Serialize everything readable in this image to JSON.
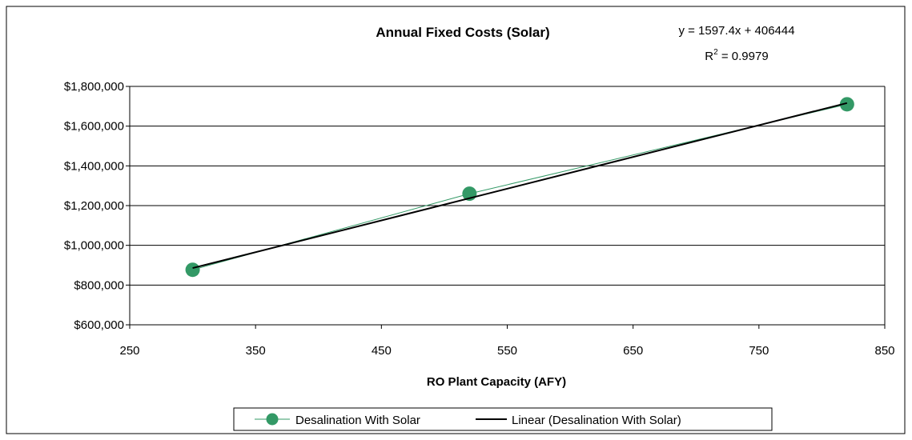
{
  "chart_data": {
    "type": "scatter",
    "title": "Annual Fixed Costs (Solar)",
    "xlabel": "RO Plant Capacity (AFY)",
    "ylabel": "",
    "xlim": [
      250,
      850
    ],
    "ylim": [
      600000,
      1800000
    ],
    "x_ticks": [
      250,
      350,
      450,
      550,
      650,
      750,
      850
    ],
    "y_ticks": [
      600000,
      800000,
      1000000,
      1200000,
      1400000,
      1600000,
      1800000
    ],
    "x_tick_labels": [
      "250",
      "350",
      "450",
      "550",
      "650",
      "750",
      "850"
    ],
    "y_tick_labels": [
      "$600,000",
      "$800,000",
      "$1,000,000",
      "$1,200,000",
      "$1,400,000",
      "$1,600,000",
      "$1,800,000"
    ],
    "grid": "horizontal",
    "legend_position": "bottom",
    "series": [
      {
        "name": "Desalination With Solar",
        "x": [
          300,
          520,
          820
        ],
        "y": [
          877000,
          1260000,
          1710000
        ],
        "color": "#339966",
        "marker": "circle"
      }
    ],
    "trendline": {
      "name": "Linear (Desalination With Solar)",
      "slope": 1597.4,
      "intercept": 406444,
      "x_range": [
        300,
        820
      ],
      "color": "#000000"
    },
    "annotations": {
      "equation_prefix": "y = 1597.4x + 406444",
      "r2_label": "R",
      "r2_sup": "2",
      "r2_value": " = 0.9979"
    }
  }
}
